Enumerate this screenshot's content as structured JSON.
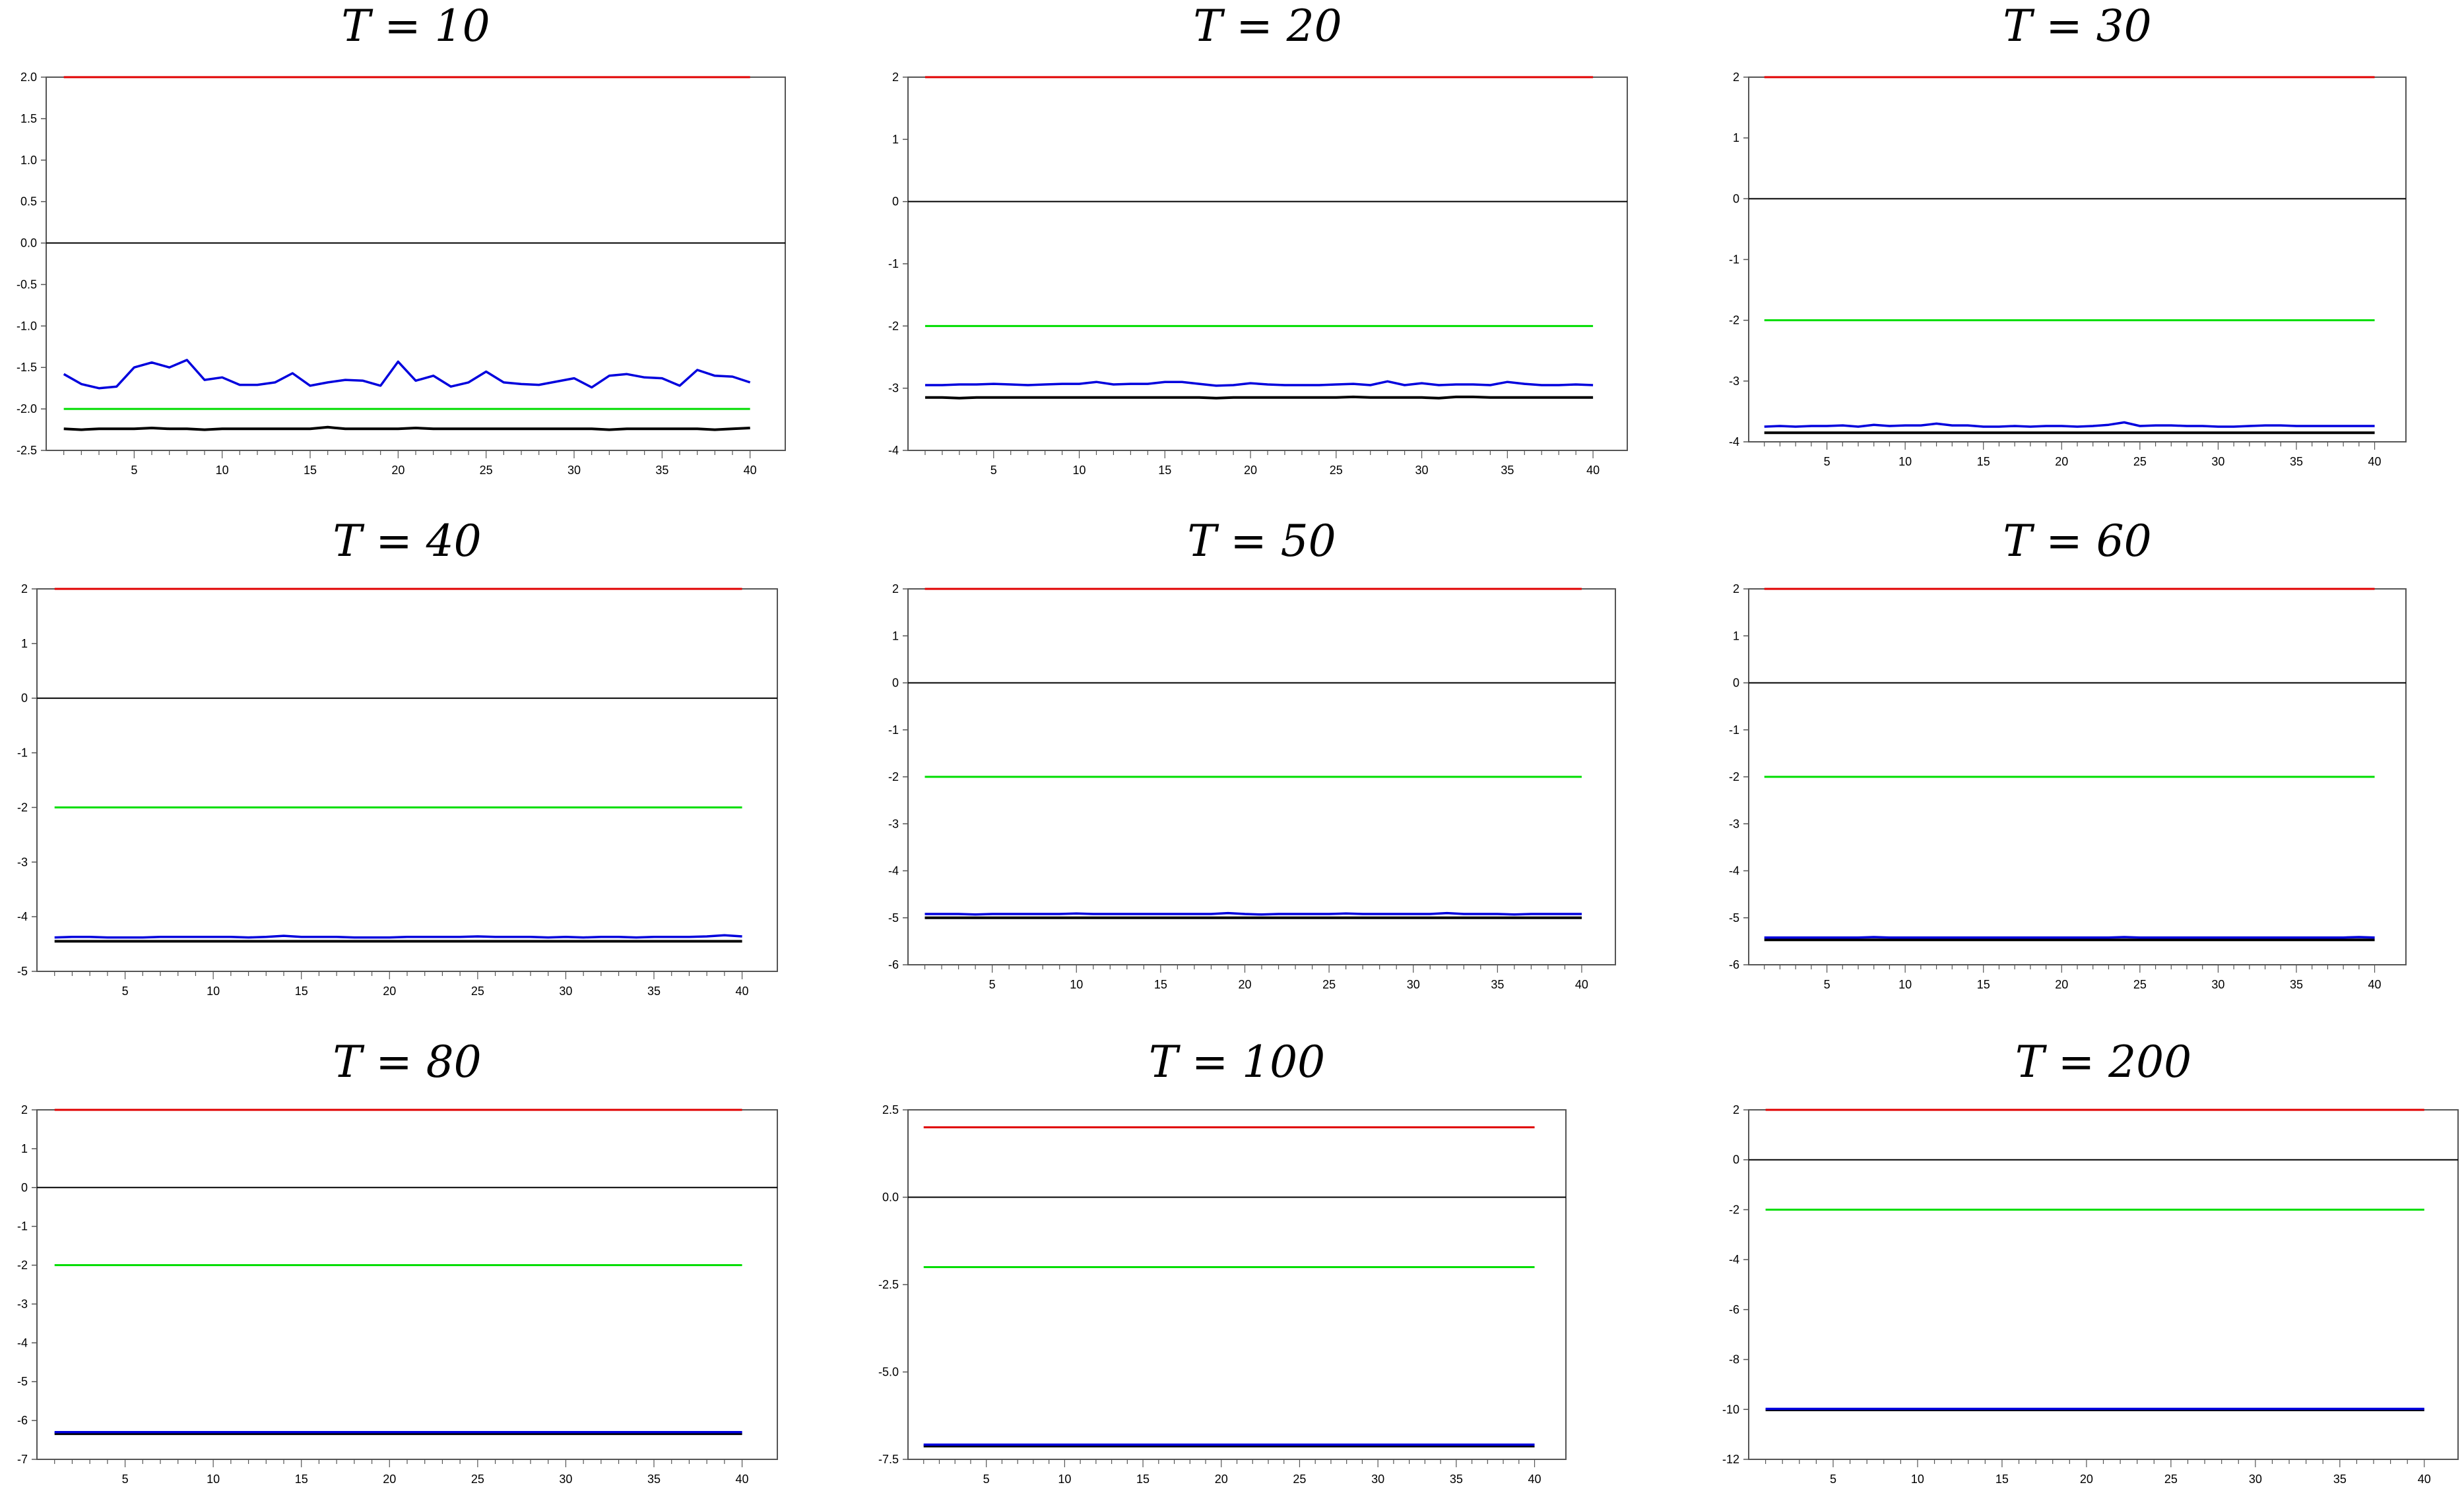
{
  "colors": {
    "upper": "#e00000",
    "lower": "#00dd00",
    "series_a": "#0000dd",
    "series_b": "#000000",
    "zero": "#000000",
    "frame": "#555555"
  },
  "chart_data": [
    {
      "type": "line",
      "title": "T = 10",
      "xlim": [
        0,
        42
      ],
      "ylim": [
        -2.5,
        2.0
      ],
      "xticks": [
        "5",
        "10",
        "15",
        "20",
        "25",
        "30",
        "35",
        "40"
      ],
      "yticks": [
        "2.0",
        "1.5",
        "1.0",
        "0.5",
        "0.0",
        "-0.5",
        "-1.0",
        "-1.5",
        "-2.0",
        "-2.5"
      ],
      "upper_bound": 2.0,
      "lower_bound": -2.0,
      "zero_line": 0,
      "series": [
        {
          "values": [
            -1.58,
            -1.7,
            -1.75,
            -1.73,
            -1.5,
            -1.44,
            -1.5,
            -1.41,
            -1.65,
            -1.62,
            -1.71,
            -1.71,
            -1.68,
            -1.57,
            -1.72,
            -1.68,
            -1.65,
            -1.66,
            -1.72,
            -1.43,
            -1.66,
            -1.6,
            -1.73,
            -1.68,
            -1.55,
            -1.68,
            -1.7,
            -1.71,
            -1.67,
            -1.63,
            -1.74,
            -1.6,
            -1.58,
            -1.62,
            -1.63,
            -1.72,
            -1.53,
            -1.6,
            -1.61,
            -1.68
          ]
        },
        {
          "values": [
            -2.24,
            -2.25,
            -2.24,
            -2.24,
            -2.24,
            -2.23,
            -2.24,
            -2.24,
            -2.25,
            -2.24,
            -2.24,
            -2.24,
            -2.24,
            -2.24,
            -2.24,
            -2.22,
            -2.24,
            -2.24,
            -2.24,
            -2.24,
            -2.23,
            -2.24,
            -2.24,
            -2.24,
            -2.24,
            -2.24,
            -2.24,
            -2.24,
            -2.24,
            -2.24,
            -2.24,
            -2.25,
            -2.24,
            -2.24,
            -2.24,
            -2.24,
            -2.24,
            -2.25,
            -2.24,
            -2.23
          ]
        }
      ]
    },
    {
      "type": "line",
      "title": "T = 20",
      "xlim": [
        0,
        42
      ],
      "ylim": [
        -4,
        2
      ],
      "xticks": [
        "5",
        "10",
        "15",
        "20",
        "25",
        "30",
        "35",
        "40"
      ],
      "yticks": [
        "2",
        "1",
        "0",
        "-1",
        "-2",
        "-3",
        "-4"
      ],
      "upper_bound": 2,
      "lower_bound": -2,
      "zero_line": 0,
      "series": [
        {
          "values": [
            -2.95,
            -2.95,
            -2.94,
            -2.94,
            -2.93,
            -2.94,
            -2.95,
            -2.94,
            -2.93,
            -2.93,
            -2.9,
            -2.94,
            -2.93,
            -2.93,
            -2.9,
            -2.9,
            -2.93,
            -2.96,
            -2.95,
            -2.92,
            -2.94,
            -2.95,
            -2.95,
            -2.95,
            -2.94,
            -2.93,
            -2.95,
            -2.89,
            -2.95,
            -2.92,
            -2.95,
            -2.94,
            -2.94,
            -2.95,
            -2.9,
            -2.93,
            -2.95,
            -2.95,
            -2.94,
            -2.95
          ]
        },
        {
          "values": [
            -3.15,
            -3.15,
            -3.16,
            -3.15,
            -3.15,
            -3.15,
            -3.15,
            -3.15,
            -3.15,
            -3.15,
            -3.15,
            -3.15,
            -3.15,
            -3.15,
            -3.15,
            -3.15,
            -3.15,
            -3.16,
            -3.15,
            -3.15,
            -3.15,
            -3.15,
            -3.15,
            -3.15,
            -3.15,
            -3.14,
            -3.15,
            -3.15,
            -3.15,
            -3.15,
            -3.16,
            -3.14,
            -3.14,
            -3.15,
            -3.15,
            -3.15,
            -3.15,
            -3.15,
            -3.15,
            -3.15
          ]
        }
      ]
    },
    {
      "type": "line",
      "title": "T = 30",
      "xlim": [
        0,
        42
      ],
      "ylim": [
        -4,
        2
      ],
      "xticks": [
        "5",
        "10",
        "15",
        "20",
        "25",
        "30",
        "35",
        "40"
      ],
      "yticks": [
        "2",
        "1",
        "0",
        "-1",
        "-2",
        "-3",
        "-4"
      ],
      "upper_bound": 2,
      "lower_bound": -2,
      "zero_line": 0,
      "series": [
        {
          "values": [
            -3.75,
            -3.74,
            -3.75,
            -3.74,
            -3.74,
            -3.73,
            -3.75,
            -3.72,
            -3.74,
            -3.73,
            -3.73,
            -3.7,
            -3.73,
            -3.73,
            -3.75,
            -3.75,
            -3.74,
            -3.75,
            -3.74,
            -3.74,
            -3.75,
            -3.74,
            -3.72,
            -3.68,
            -3.74,
            -3.73,
            -3.73,
            -3.74,
            -3.74,
            -3.75,
            -3.75,
            -3.74,
            -3.73,
            -3.73,
            -3.74,
            -3.74,
            -3.74,
            -3.74,
            -3.74,
            -3.74
          ]
        },
        {
          "values": [
            -3.85,
            -3.85,
            -3.85,
            -3.85,
            -3.85,
            -3.85,
            -3.85,
            -3.85,
            -3.85,
            -3.85,
            -3.85,
            -3.85,
            -3.85,
            -3.85,
            -3.85,
            -3.85,
            -3.85,
            -3.85,
            -3.85,
            -3.85,
            -3.85,
            -3.85,
            -3.85,
            -3.85,
            -3.85,
            -3.85,
            -3.85,
            -3.85,
            -3.85,
            -3.85,
            -3.85,
            -3.85,
            -3.85,
            -3.85,
            -3.85,
            -3.85,
            -3.85,
            -3.85,
            -3.85,
            -3.85
          ]
        }
      ]
    },
    {
      "type": "line",
      "title": "T = 40",
      "xlim": [
        0,
        42
      ],
      "ylim": [
        -5,
        2
      ],
      "xticks": [
        "5",
        "10",
        "15",
        "20",
        "25",
        "30",
        "35",
        "40"
      ],
      "yticks": [
        "2",
        "1",
        "0",
        "-1",
        "-2",
        "-3",
        "-4",
        "-5"
      ],
      "upper_bound": 2,
      "lower_bound": -2,
      "zero_line": 0,
      "series": [
        {
          "values": [
            -4.38,
            -4.37,
            -4.37,
            -4.38,
            -4.38,
            -4.38,
            -4.37,
            -4.37,
            -4.37,
            -4.37,
            -4.37,
            -4.38,
            -4.37,
            -4.35,
            -4.37,
            -4.37,
            -4.37,
            -4.38,
            -4.38,
            -4.38,
            -4.37,
            -4.37,
            -4.37,
            -4.37,
            -4.36,
            -4.37,
            -4.37,
            -4.37,
            -4.38,
            -4.37,
            -4.38,
            -4.37,
            -4.37,
            -4.38,
            -4.37,
            -4.37,
            -4.37,
            -4.36,
            -4.34,
            -4.36
          ]
        },
        {
          "values": [
            -4.45,
            -4.45,
            -4.45,
            -4.45,
            -4.45,
            -4.45,
            -4.45,
            -4.45,
            -4.45,
            -4.45,
            -4.45,
            -4.45,
            -4.45,
            -4.45,
            -4.45,
            -4.45,
            -4.45,
            -4.45,
            -4.45,
            -4.45,
            -4.45,
            -4.45,
            -4.45,
            -4.45,
            -4.45,
            -4.45,
            -4.45,
            -4.45,
            -4.45,
            -4.45,
            -4.45,
            -4.45,
            -4.45,
            -4.45,
            -4.45,
            -4.45,
            -4.45,
            -4.45,
            -4.45,
            -4.45
          ]
        }
      ]
    },
    {
      "type": "line",
      "title": "T = 50",
      "xlim": [
        0,
        42
      ],
      "ylim": [
        -6,
        2
      ],
      "xticks": [
        "5",
        "10",
        "15",
        "20",
        "25",
        "30",
        "35",
        "40"
      ],
      "yticks": [
        "2",
        "1",
        "0",
        "-1",
        "-2",
        "-3",
        "-4",
        "-5",
        "-6"
      ],
      "upper_bound": 2,
      "lower_bound": -2,
      "zero_line": 0,
      "series": [
        {
          "values": [
            -4.92,
            -4.92,
            -4.92,
            -4.93,
            -4.92,
            -4.92,
            -4.92,
            -4.92,
            -4.92,
            -4.91,
            -4.92,
            -4.92,
            -4.92,
            -4.92,
            -4.92,
            -4.92,
            -4.92,
            -4.92,
            -4.9,
            -4.92,
            -4.93,
            -4.92,
            -4.92,
            -4.92,
            -4.92,
            -4.91,
            -4.92,
            -4.92,
            -4.92,
            -4.92,
            -4.92,
            -4.9,
            -4.92,
            -4.92,
            -4.92,
            -4.93,
            -4.92,
            -4.92,
            -4.92,
            -4.92
          ]
        },
        {
          "values": [
            -5.0,
            -5.0,
            -5.0,
            -5.0,
            -5.0,
            -5.0,
            -5.0,
            -5.0,
            -5.0,
            -5.0,
            -5.0,
            -5.0,
            -5.0,
            -5.0,
            -5.0,
            -5.0,
            -5.0,
            -5.0,
            -5.0,
            -5.0,
            -5.0,
            -5.0,
            -5.0,
            -5.0,
            -5.0,
            -5.0,
            -5.0,
            -5.0,
            -5.0,
            -5.0,
            -5.0,
            -5.0,
            -5.0,
            -5.0,
            -5.0,
            -5.0,
            -5.0,
            -5.0,
            -5.0,
            -5.0
          ]
        }
      ]
    },
    {
      "type": "line",
      "title": "T = 60",
      "xlim": [
        0,
        42
      ],
      "ylim": [
        -6,
        2
      ],
      "xticks": [
        "5",
        "10",
        "15",
        "20",
        "25",
        "30",
        "35",
        "40"
      ],
      "yticks": [
        "2",
        "1",
        "0",
        "-1",
        "-2",
        "-3",
        "-4",
        "-5",
        "-6"
      ],
      "upper_bound": 2,
      "lower_bound": -2,
      "zero_line": 0,
      "series": [
        {
          "values": [
            -5.42,
            -5.42,
            -5.42,
            -5.42,
            -5.42,
            -5.42,
            -5.42,
            -5.41,
            -5.42,
            -5.42,
            -5.42,
            -5.42,
            -5.42,
            -5.42,
            -5.42,
            -5.42,
            -5.42,
            -5.42,
            -5.42,
            -5.42,
            -5.42,
            -5.42,
            -5.42,
            -5.41,
            -5.42,
            -5.42,
            -5.42,
            -5.42,
            -5.42,
            -5.42,
            -5.42,
            -5.42,
            -5.42,
            -5.42,
            -5.42,
            -5.42,
            -5.42,
            -5.42,
            -5.41,
            -5.42
          ]
        },
        {
          "values": [
            -5.47,
            -5.47,
            -5.47,
            -5.47,
            -5.47,
            -5.47,
            -5.47,
            -5.47,
            -5.47,
            -5.47,
            -5.47,
            -5.47,
            -5.47,
            -5.47,
            -5.47,
            -5.47,
            -5.47,
            -5.47,
            -5.47,
            -5.47,
            -5.47,
            -5.47,
            -5.47,
            -5.47,
            -5.47,
            -5.47,
            -5.47,
            -5.47,
            -5.47,
            -5.47,
            -5.47,
            -5.47,
            -5.47,
            -5.47,
            -5.47,
            -5.47,
            -5.47,
            -5.47,
            -5.47,
            -5.47
          ]
        }
      ]
    },
    {
      "type": "line",
      "title": "T = 80",
      "xlim": [
        0,
        42
      ],
      "ylim": [
        -7,
        2
      ],
      "xticks": [
        "5",
        "10",
        "15",
        "20",
        "25",
        "30",
        "35",
        "40"
      ],
      "yticks": [
        "2",
        "1",
        "0",
        "-1",
        "-2",
        "-3",
        "-4",
        "-5",
        "-6",
        "-7"
      ],
      "upper_bound": 2,
      "lower_bound": -2,
      "zero_line": 0,
      "series": [
        {
          "values": [
            -6.3,
            -6.3,
            -6.3,
            -6.3,
            -6.3,
            -6.3,
            -6.3,
            -6.3,
            -6.3,
            -6.3,
            -6.3,
            -6.3,
            -6.3,
            -6.3,
            -6.3,
            -6.3,
            -6.3,
            -6.3,
            -6.3,
            -6.3,
            -6.3,
            -6.3,
            -6.3,
            -6.3,
            -6.3,
            -6.3,
            -6.3,
            -6.3,
            -6.3,
            -6.3,
            -6.3,
            -6.3,
            -6.3,
            -6.3,
            -6.3,
            -6.3,
            -6.3,
            -6.3,
            -6.3,
            -6.3
          ]
        },
        {
          "values": [
            -6.34,
            -6.34,
            -6.34,
            -6.34,
            -6.34,
            -6.34,
            -6.34,
            -6.34,
            -6.34,
            -6.34,
            -6.34,
            -6.34,
            -6.34,
            -6.34,
            -6.34,
            -6.34,
            -6.34,
            -6.34,
            -6.34,
            -6.34,
            -6.34,
            -6.34,
            -6.34,
            -6.34,
            -6.34,
            -6.34,
            -6.34,
            -6.34,
            -6.34,
            -6.34,
            -6.34,
            -6.34,
            -6.34,
            -6.34,
            -6.34,
            -6.34,
            -6.34,
            -6.34,
            -6.34,
            -6.34
          ]
        }
      ]
    },
    {
      "type": "line",
      "title": "T = 100",
      "xlim": [
        0,
        42
      ],
      "ylim": [
        -7.5,
        2.5
      ],
      "xticks": [
        "5",
        "10",
        "15",
        "20",
        "25",
        "30",
        "35",
        "40"
      ],
      "yticks": [
        "2.5",
        "0.0",
        "-2.5",
        "-5.0",
        "-7.5"
      ],
      "upper_bound": 2,
      "lower_bound": -2,
      "zero_line": 0,
      "series": [
        {
          "values": [
            -7.08,
            -7.08,
            -7.08,
            -7.08,
            -7.08,
            -7.08,
            -7.08,
            -7.08,
            -7.08,
            -7.08,
            -7.08,
            -7.08,
            -7.08,
            -7.08,
            -7.08,
            -7.08,
            -7.08,
            -7.08,
            -7.08,
            -7.08,
            -7.08,
            -7.08,
            -7.08,
            -7.08,
            -7.08,
            -7.08,
            -7.08,
            -7.08,
            -7.08,
            -7.08,
            -7.08,
            -7.08,
            -7.08,
            -7.08,
            -7.08,
            -7.08,
            -7.08,
            -7.08,
            -7.08,
            -7.08
          ]
        },
        {
          "values": [
            -7.12,
            -7.12,
            -7.12,
            -7.12,
            -7.12,
            -7.12,
            -7.12,
            -7.12,
            -7.12,
            -7.12,
            -7.12,
            -7.12,
            -7.12,
            -7.12,
            -7.12,
            -7.12,
            -7.12,
            -7.12,
            -7.12,
            -7.12,
            -7.12,
            -7.12,
            -7.12,
            -7.12,
            -7.12,
            -7.12,
            -7.12,
            -7.12,
            -7.12,
            -7.12,
            -7.12,
            -7.12,
            -7.12,
            -7.12,
            -7.12,
            -7.12,
            -7.12,
            -7.12,
            -7.12,
            -7.12
          ]
        }
      ]
    },
    {
      "type": "line",
      "title": "T = 200",
      "xlim": [
        0,
        42
      ],
      "ylim": [
        -12,
        2
      ],
      "xticks": [
        "5",
        "10",
        "15",
        "20",
        "25",
        "30",
        "35",
        "40"
      ],
      "yticks": [
        "2",
        "0",
        "-2",
        "-4",
        "-6",
        "-8",
        "-10",
        "-12"
      ],
      "upper_bound": 2,
      "lower_bound": -2,
      "zero_line": 0,
      "series": [
        {
          "values": [
            -9.98,
            -9.98,
            -9.98,
            -9.98,
            -9.98,
            -9.98,
            -9.98,
            -9.98,
            -9.98,
            -9.98,
            -9.98,
            -9.98,
            -9.98,
            -9.98,
            -9.98,
            -9.98,
            -9.98,
            -9.98,
            -9.98,
            -9.98,
            -9.98,
            -9.98,
            -9.98,
            -9.98,
            -9.98,
            -9.98,
            -9.98,
            -9.98,
            -9.98,
            -9.98,
            -9.98,
            -9.98,
            -9.98,
            -9.98,
            -9.98,
            -9.98,
            -9.98,
            -9.98,
            -9.98,
            -9.98
          ]
        },
        {
          "values": [
            -10.02,
            -10.02,
            -10.02,
            -10.02,
            -10.02,
            -10.02,
            -10.02,
            -10.02,
            -10.02,
            -10.02,
            -10.02,
            -10.02,
            -10.02,
            -10.02,
            -10.02,
            -10.02,
            -10.02,
            -10.02,
            -10.02,
            -10.02,
            -10.02,
            -10.02,
            -10.02,
            -10.02,
            -10.02,
            -10.02,
            -10.02,
            -10.02,
            -10.02,
            -10.02,
            -10.02,
            -10.02,
            -10.02,
            -10.02,
            -10.02,
            -10.02,
            -10.02,
            -10.02,
            -10.02,
            -10.02
          ]
        }
      ]
    }
  ]
}
